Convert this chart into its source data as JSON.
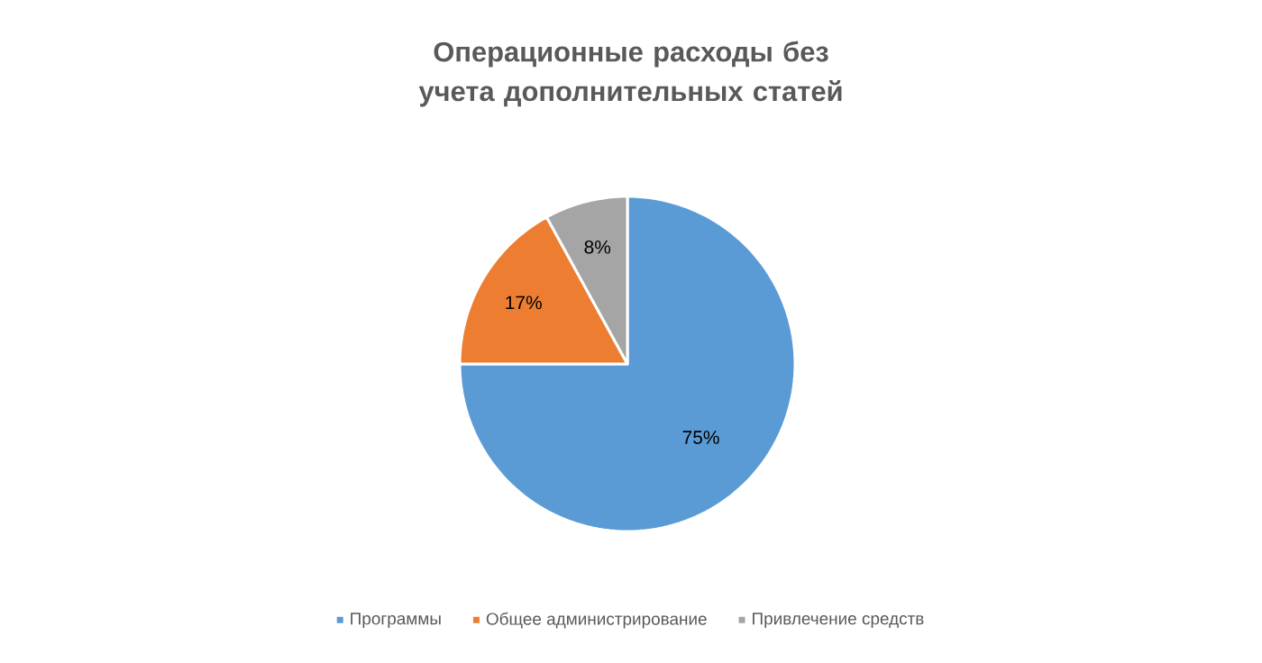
{
  "chart_data": {
    "type": "pie",
    "title": "Операционные расходы без учета дополнительных статей",
    "categories": [
      "Программы",
      "Общее администрирование",
      "Привлечение средств"
    ],
    "values": [
      75,
      17,
      8
    ],
    "colors": [
      "#5b9bd5",
      "#ed7d31",
      "#a5a5a5"
    ],
    "value_labels": [
      "75%",
      "17%",
      "8%"
    ],
    "legend": "bottom"
  }
}
